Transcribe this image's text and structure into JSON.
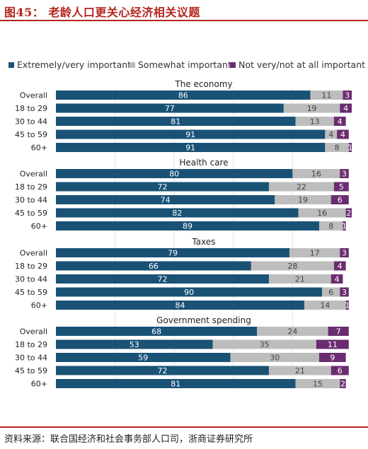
{
  "figure": {
    "title": "图45：   老龄人口更关心经济相关议题",
    "source": "资料来源：联合国经济和社会事务部人口司，浙商证券研究所"
  },
  "chart_data": {
    "type": "bar",
    "orientation": "horizontal",
    "stacked": true,
    "legend_position": "top",
    "series": [
      {
        "name": "Extremely/very important",
        "color": "#1a5276"
      },
      {
        "name": "Somewhat important",
        "color": "#bdbdbd"
      },
      {
        "name": "Not very/not at all important",
        "color": "#6a2c70"
      }
    ],
    "groups": [
      {
        "title": "The economy",
        "rows": [
          {
            "label": "Overall",
            "values": [
              86,
              11,
              3
            ]
          },
          {
            "label": "18 to 29",
            "values": [
              77,
              19,
              4
            ]
          },
          {
            "label": "30 to 44",
            "values": [
              81,
              13,
              4
            ]
          },
          {
            "label": "45 to 59",
            "values": [
              91,
              4,
              4
            ]
          },
          {
            "label": "60+",
            "values": [
              91,
              8,
              1
            ]
          }
        ]
      },
      {
        "title": "Health care",
        "rows": [
          {
            "label": "Overall",
            "values": [
              80,
              16,
              3
            ]
          },
          {
            "label": "18 to 29",
            "values": [
              72,
              22,
              5
            ]
          },
          {
            "label": "30 to 44",
            "values": [
              74,
              19,
              6
            ]
          },
          {
            "label": "45 to 59",
            "values": [
              82,
              16,
              2
            ]
          },
          {
            "label": "60+",
            "values": [
              89,
              8,
              1
            ]
          }
        ]
      },
      {
        "title": "Taxes",
        "rows": [
          {
            "label": "Overall",
            "values": [
              79,
              17,
              3
            ]
          },
          {
            "label": "18 to 29",
            "values": [
              66,
              28,
              4
            ]
          },
          {
            "label": "30 to 44",
            "values": [
              72,
              21,
              4
            ]
          },
          {
            "label": "45 to 59",
            "values": [
              90,
              6,
              3
            ]
          },
          {
            "label": "60+",
            "values": [
              84,
              14,
              1
            ]
          }
        ]
      },
      {
        "title": "Government spending",
        "rows": [
          {
            "label": "Overall",
            "values": [
              68,
              24,
              7
            ]
          },
          {
            "label": "18 to 29",
            "values": [
              53,
              35,
              11
            ]
          },
          {
            "label": "30 to 44",
            "values": [
              59,
              30,
              9
            ]
          },
          {
            "label": "45 to 59",
            "values": [
              72,
              21,
              6
            ]
          },
          {
            "label": "60+",
            "values": [
              81,
              15,
              2
            ]
          }
        ]
      }
    ],
    "xlim": [
      0,
      100
    ],
    "grid": true
  }
}
